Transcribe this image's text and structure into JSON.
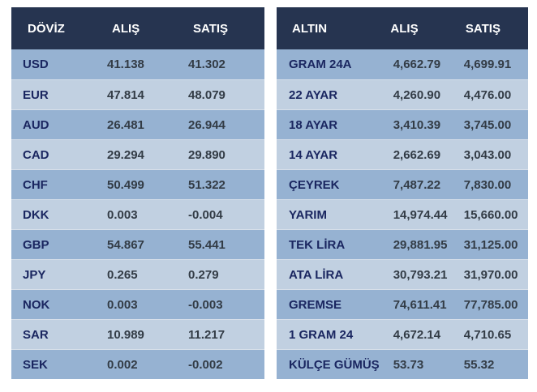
{
  "doviz": {
    "headers": [
      "DÖVİZ",
      "ALIŞ",
      "SATIŞ"
    ],
    "rows": [
      [
        "USD",
        "41.138",
        "41.302"
      ],
      [
        "EUR",
        "47.814",
        "48.079"
      ],
      [
        "AUD",
        "26.481",
        "26.944"
      ],
      [
        "CAD",
        "29.294",
        "29.890"
      ],
      [
        "CHF",
        "50.499",
        "51.322"
      ],
      [
        "DKK",
        "0.003",
        "-0.004"
      ],
      [
        "GBP",
        "54.867",
        "55.441"
      ],
      [
        "JPY",
        "0.265",
        "0.279"
      ],
      [
        "NOK",
        "0.003",
        "-0.003"
      ],
      [
        "SAR",
        "10.989",
        "11.217"
      ],
      [
        "SEK",
        "0.002",
        "-0.002"
      ]
    ]
  },
  "altin": {
    "headers": [
      "ALTIN",
      "ALIŞ",
      "SATIŞ"
    ],
    "rows": [
      [
        "GRAM 24A",
        "4,662.79",
        "4,699.91"
      ],
      [
        "22 AYAR",
        "4,260.90",
        "4,476.00"
      ],
      [
        "18 AYAR",
        "3,410.39",
        "3,745.00"
      ],
      [
        "14 AYAR",
        "2,662.69",
        "3,043.00"
      ],
      [
        "ÇEYREK",
        "7,487.22",
        "7,830.00"
      ],
      [
        "YARIM",
        "14,974.44",
        "15,660.00"
      ],
      [
        "TEK LİRA",
        "29,881.95",
        "31,125.00"
      ],
      [
        "ATA LİRA",
        "30,793.21",
        "31,970.00"
      ],
      [
        "GREMSE",
        "74,611.41",
        "77,785.00"
      ],
      [
        "1 GRAM 24",
        "4,672.14",
        "4,710.65"
      ],
      [
        "KÜLÇE GÜMÜŞ",
        "53.73",
        "55.32"
      ]
    ]
  },
  "colors": {
    "header_bg": "#263450",
    "row_odd": "#96b2d2",
    "row_even": "#c1d0e1",
    "code_text": "#1a2660",
    "value_text": "#333c46"
  }
}
